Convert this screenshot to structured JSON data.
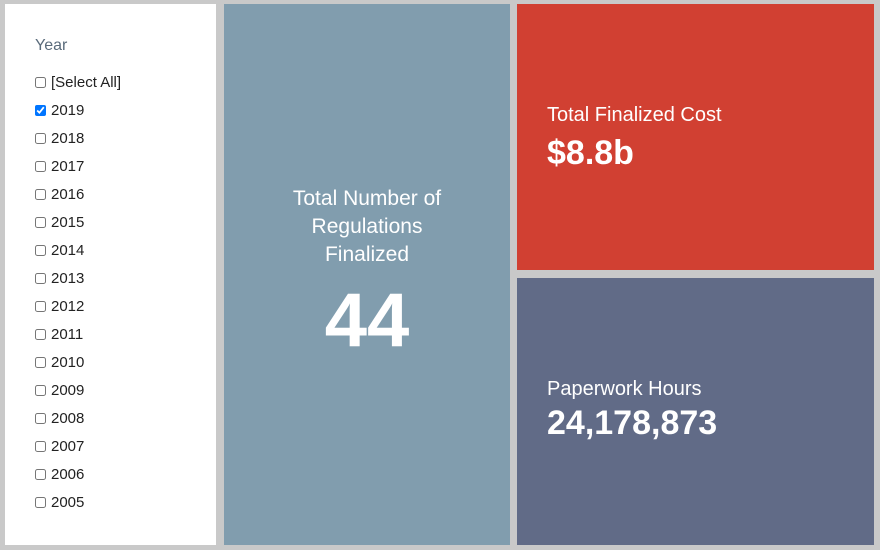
{
  "filter": {
    "title": "Year",
    "items": [
      {
        "label": "[Select All]",
        "checked": false
      },
      {
        "label": "2019",
        "checked": true
      },
      {
        "label": "2018",
        "checked": false
      },
      {
        "label": "2017",
        "checked": false
      },
      {
        "label": "2016",
        "checked": false
      },
      {
        "label": "2015",
        "checked": false
      },
      {
        "label": "2014",
        "checked": false
      },
      {
        "label": "2013",
        "checked": false
      },
      {
        "label": "2012",
        "checked": false
      },
      {
        "label": "2011",
        "checked": false
      },
      {
        "label": "2010",
        "checked": false
      },
      {
        "label": "2009",
        "checked": false
      },
      {
        "label": "2008",
        "checked": false
      },
      {
        "label": "2007",
        "checked": false
      },
      {
        "label": "2006",
        "checked": false
      },
      {
        "label": "2005",
        "checked": false
      }
    ]
  },
  "regulations": {
    "title_lines": [
      "Total Number of",
      "Regulations",
      "Finalized"
    ],
    "value": "44"
  },
  "cost": {
    "label": "Total Finalized Cost",
    "value": "$8.8b"
  },
  "hours": {
    "label": "Paperwork Hours",
    "value": "24,178,873"
  },
  "colors": {
    "background": "#c9c9c9",
    "regulations_card": "#819dae",
    "cost_card": "#d14032",
    "hours_card": "#616b87"
  }
}
